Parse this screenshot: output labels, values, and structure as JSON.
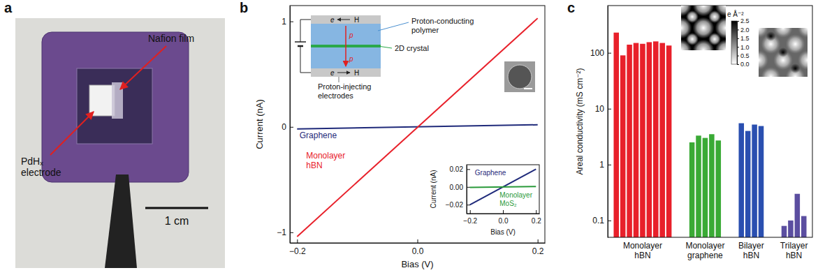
{
  "chart_data": [
    {
      "type": "photo",
      "panel": "a",
      "annotations": [
        "Nafion film",
        "PdHₓ electrode"
      ],
      "scale_bar": "1 cm"
    },
    {
      "type": "line",
      "panel": "b",
      "x_label": "Bias (V)",
      "y_label": "Current (nA)",
      "x": [
        -0.2,
        0.2
      ],
      "xlim": [
        -0.212,
        0.212
      ],
      "xticks": [
        {
          "value": -0.2,
          "label": "−0.2"
        },
        {
          "value": 0,
          "label": "0.0"
        },
        0.2
      ],
      "ylim": [
        -1.1,
        1.15
      ],
      "yticks": [
        {
          "value": -1,
          "label": "−1"
        },
        0,
        1
      ],
      "series": [
        {
          "name": "Graphene",
          "color": "#1f2a7a",
          "values": [
            -0.02,
            0.02
          ]
        },
        {
          "name": "Monolayer hBN",
          "color": "#e8202a",
          "values": [
            -1.04,
            1.03
          ]
        }
      ],
      "schematic": {
        "labels": [
          "Proton-conducting polymer",
          "2D crystal",
          "Proton-injecting electrodes"
        ],
        "carriers": [
          "e",
          "H",
          "p"
        ]
      }
    },
    {
      "type": "line",
      "x_label": "Bias (V)",
      "y_label": "Current (nA)",
      "x": [
        -0.2,
        0.2
      ],
      "xlim": [
        -0.22,
        0.22
      ],
      "xticks": [
        {
          "value": -0.2,
          "label": "−0.2"
        },
        {
          "value": 0,
          "label": "0.0"
        },
        0.2
      ],
      "ylim": [
        -0.03,
        0.025
      ],
      "yticks": [
        {
          "value": -0.02,
          "label": "−0.02"
        },
        {
          "value": 0,
          "label": "0.00"
        },
        0.02
      ],
      "series": [
        {
          "name": "Graphene",
          "color": "#1f2a7a",
          "values": [
            -0.02,
            0.02
          ]
        },
        {
          "name": "Monolayer MoS₂",
          "color": "#2a9a3a",
          "values": [
            -0.0005,
            0.0005
          ]
        }
      ]
    },
    {
      "type": "bar",
      "panel": "c",
      "y_label": "Areal conductivity (mS cm⁻²)",
      "log": "y",
      "ylim": [
        0.05,
        700
      ],
      "yticks": [
        0.1,
        1,
        10,
        100
      ],
      "series": [
        {
          "name": "Monolayer hBN",
          "color": "#e8202a",
          "values": [
            230,
            90,
            140,
            150,
            145,
            155,
            160,
            150,
            135
          ]
        },
        {
          "name": "Monolayer graphene",
          "color": "#3aaa35",
          "values": [
            2.5,
            3.3,
            3.0,
            3.5,
            2.7
          ]
        },
        {
          "name": "Bilayer hBN",
          "color": "#2a4fb0",
          "values": [
            5.5,
            4.0,
            5.2,
            4.9
          ]
        },
        {
          "name": "Trilayer hBN",
          "color": "#5b4ea0",
          "values": [
            0.08,
            0.1,
            0.3,
            0.12
          ]
        }
      ],
      "colorbar": {
        "label": "e Å⁻²",
        "range": [
          0,
          2.5
        ],
        "ticks": [
          {
            "value": 0,
            "label": "0.0"
          },
          0.5,
          {
            "value": 1,
            "label": "1.0"
          },
          1.5,
          {
            "value": 2,
            "label": "2.0"
          },
          2.5
        ]
      }
    }
  ]
}
